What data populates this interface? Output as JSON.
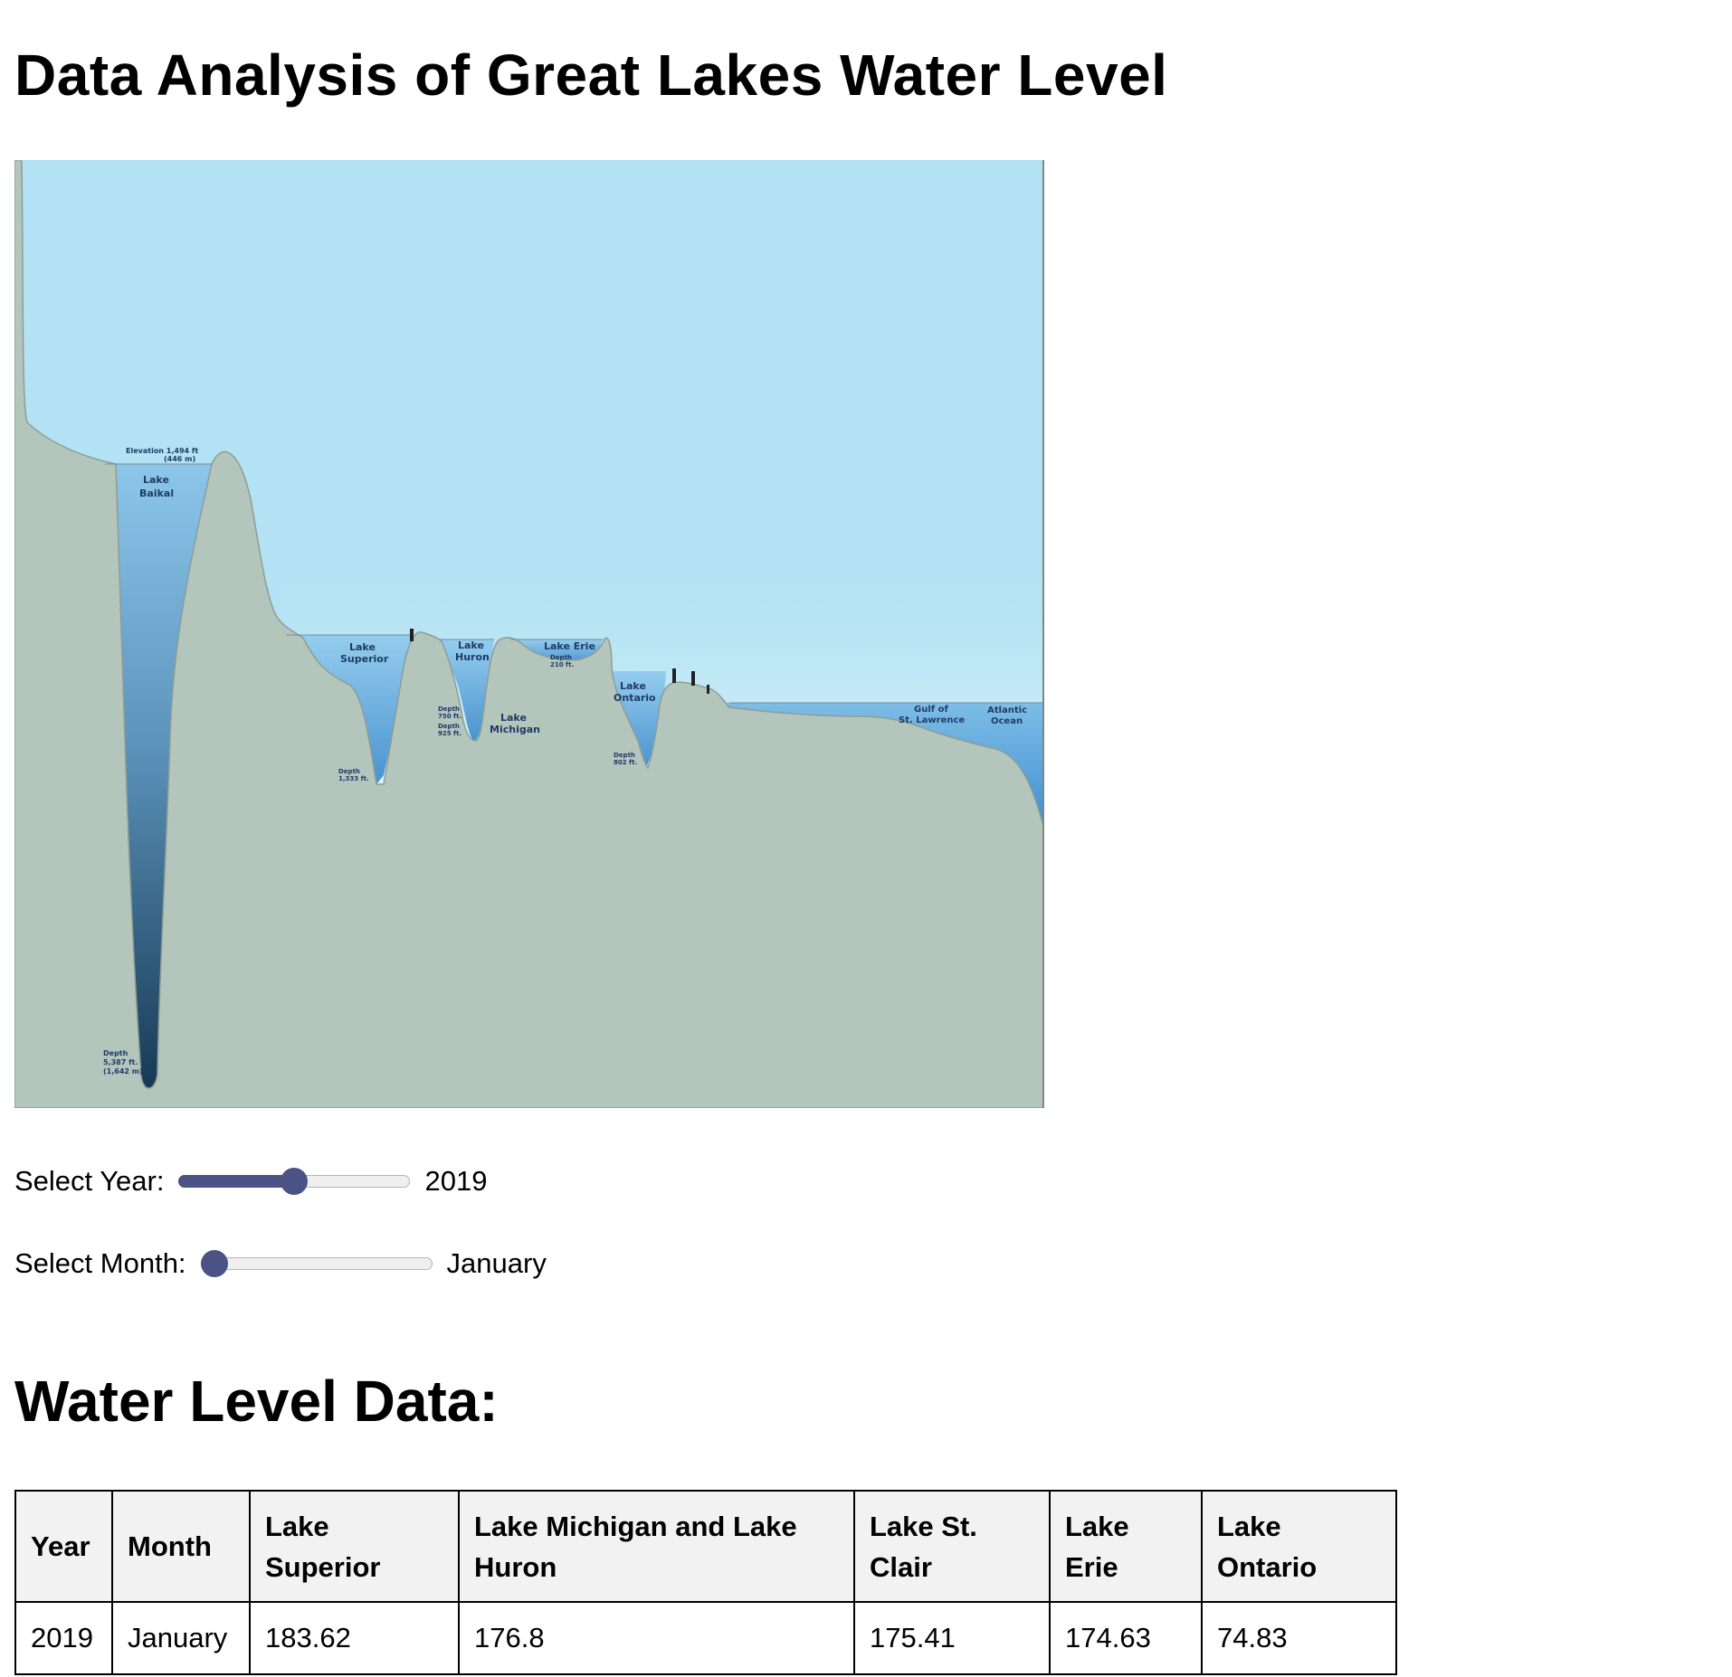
{
  "page": {
    "title": "Data Analysis of Great Lakes Water Level",
    "table_heading": "Water Level Data:"
  },
  "figure": {
    "labels": {
      "baikal_elevation_1": "Elevation 1,494 ft",
      "baikal_elevation_2": "(446 m)",
      "baikal_1": "Lake",
      "baikal_2": "Baikal",
      "baikal_depth_1": "Depth",
      "baikal_depth_2": "5,387 ft.",
      "baikal_depth_3": "(1,642 m)",
      "superior_1": "Lake",
      "superior_2": "Superior",
      "superior_depth_1": "Depth",
      "superior_depth_2": "1,333 ft.",
      "huron_1": "Lake",
      "huron_2": "Huron",
      "huron_depth_1": "Depth",
      "huron_depth_2": "750 ft.",
      "michigan_depth_1": "Depth",
      "michigan_depth_2": "925 ft.",
      "michigan_1": "Lake",
      "michigan_2": "Michigan",
      "erie": "Lake Erie",
      "erie_depth_1": "Depth",
      "erie_depth_2": "210 ft.",
      "ontario_1": "Lake",
      "ontario_2": "Ontario",
      "ontario_depth_1": "Depth",
      "ontario_depth_2": "802 ft.",
      "gulf_1": "Gulf of",
      "gulf_2": "St. Lawrence",
      "atlantic_1": "Atlantic",
      "atlantic_2": "Ocean"
    },
    "colors": {
      "sky": "#b2e2f3",
      "land": "#b4c5bc",
      "water": "#73b3dd",
      "deep_water": "#173a55"
    }
  },
  "controls": {
    "year": {
      "label": "Select Year:",
      "value": "2019",
      "fraction": 0.5
    },
    "month": {
      "label": "Select Month:",
      "value": "January",
      "fraction": 0.0
    },
    "accent_color": "#4b5285"
  },
  "table": {
    "headers": {
      "year": "Year",
      "month": "Month",
      "superior": "Lake Superior",
      "mich_huron": "Lake Michigan and Lake Huron",
      "st_clair": "Lake St. Clair",
      "erie": "Lake Erie",
      "ontario": "Lake Ontario"
    },
    "rows": [
      {
        "year": "2019",
        "month": "January",
        "superior": "183.62",
        "mich_huron": "176.8",
        "st_clair": "175.41",
        "erie": "174.63",
        "ontario": "74.83"
      }
    ]
  }
}
